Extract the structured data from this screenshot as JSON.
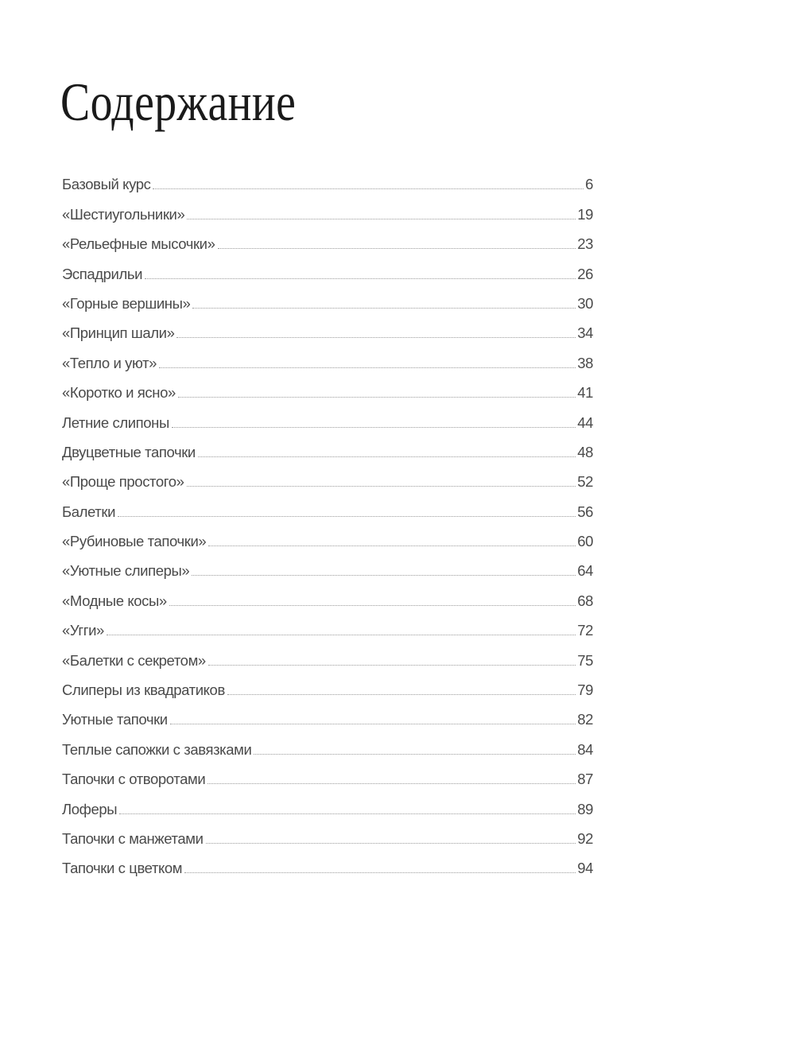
{
  "title": "Содержание",
  "entries": [
    {
      "label": "Базовый курс",
      "page": "6"
    },
    {
      "label": "«Шестиугольники»",
      "page": "19"
    },
    {
      "label": "«Рельефные мысочки»",
      "page": "23"
    },
    {
      "label": "Эспадрильи",
      "page": "26"
    },
    {
      "label": "«Горные вершины»",
      "page": "30"
    },
    {
      "label": "«Принцип шали»",
      "page": "34"
    },
    {
      "label": "«Тепло и уют»",
      "page": "38"
    },
    {
      "label": "«Коротко и ясно»",
      "page": "41"
    },
    {
      "label": "Летние слипоны",
      "page": "44"
    },
    {
      "label": "Двуцветные тапочки",
      "page": "48"
    },
    {
      "label": "«Проще простого»",
      "page": "52"
    },
    {
      "label": "Балетки",
      "page": "56"
    },
    {
      "label": "«Рубиновые тапочки»",
      "page": "60"
    },
    {
      "label": "«Уютные слиперы»",
      "page": "64"
    },
    {
      "label": "«Модные косы»",
      "page": "68"
    },
    {
      "label": "«Угги»",
      "page": "72"
    },
    {
      "label": "«Балетки с секретом»",
      "page": "75"
    },
    {
      "label": "Слиперы из квадратиков",
      "page": "79"
    },
    {
      "label": "Уютные тапочки",
      "page": "82"
    },
    {
      "label": "Теплые сапожки с завязками",
      "page": "84"
    },
    {
      "label": "Тапочки с отворотами",
      "page": "87"
    },
    {
      "label": "Лоферы",
      "page": "89"
    },
    {
      "label": "Тапочки с манжетами",
      "page": "92"
    },
    {
      "label": "Тапочки с цветком",
      "page": "94"
    }
  ]
}
